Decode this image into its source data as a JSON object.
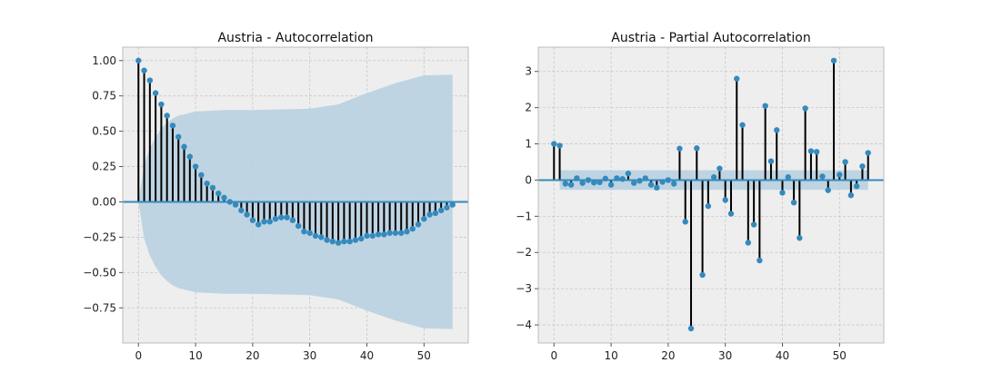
{
  "chart_data": [
    {
      "type": "stem",
      "title": "Austria - Autocorrelation",
      "xlabel": "",
      "ylabel": "",
      "xlim": [
        -2.75,
        57.75
      ],
      "ylim": [
        -0.9986,
        1.0948
      ],
      "xticks": [
        0,
        10,
        20,
        30,
        40,
        50
      ],
      "yticks": [
        -0.75,
        -0.5,
        -0.25,
        0.0,
        0.25,
        0.5,
        0.75,
        1.0
      ],
      "ytick_labels": [
        "−0.75",
        "−0.50",
        "−0.25",
        "0.00",
        "0.25",
        "0.50",
        "0.75",
        "1.00"
      ],
      "grid": true,
      "colors": {
        "marker": "#348abd",
        "stem": "#000000",
        "baseline": "#348abd",
        "band": "#bcd2e0",
        "axes_bg": "#eeeeee",
        "grid": "#c8c8c8"
      },
      "x": [
        0,
        1,
        2,
        3,
        4,
        5,
        6,
        7,
        8,
        9,
        10,
        11,
        12,
        13,
        14,
        15,
        16,
        17,
        18,
        19,
        20,
        21,
        22,
        23,
        24,
        25,
        26,
        27,
        28,
        29,
        30,
        31,
        32,
        33,
        34,
        35,
        36,
        37,
        38,
        39,
        40,
        41,
        42,
        43,
        44,
        45,
        46,
        47,
        48,
        49,
        50,
        51,
        52,
        53,
        54,
        55
      ],
      "values": [
        1.0,
        0.93,
        0.86,
        0.77,
        0.69,
        0.61,
        0.54,
        0.46,
        0.39,
        0.32,
        0.25,
        0.19,
        0.13,
        0.1,
        0.06,
        0.03,
        0.0,
        -0.02,
        -0.06,
        -0.09,
        -0.13,
        -0.16,
        -0.14,
        -0.14,
        -0.12,
        -0.11,
        -0.11,
        -0.13,
        -0.17,
        -0.21,
        -0.22,
        -0.24,
        -0.25,
        -0.27,
        -0.28,
        -0.29,
        -0.28,
        -0.28,
        -0.27,
        -0.26,
        -0.24,
        -0.24,
        -0.23,
        -0.23,
        -0.22,
        -0.22,
        -0.22,
        -0.21,
        -0.19,
        -0.16,
        -0.12,
        -0.09,
        -0.08,
        -0.06,
        -0.04,
        -0.02
      ],
      "confidence_band": {
        "x": [
          0,
          1,
          2,
          3,
          4,
          5,
          6,
          7,
          8,
          9,
          10,
          15,
          20,
          25,
          30,
          35,
          40,
          45,
          50,
          55
        ],
        "upper": [
          0,
          0.26,
          0.38,
          0.46,
          0.52,
          0.56,
          0.59,
          0.61,
          0.62,
          0.63,
          0.64,
          0.65,
          0.65,
          0.655,
          0.66,
          0.69,
          0.77,
          0.84,
          0.895,
          0.9
        ]
      }
    },
    {
      "type": "stem",
      "title": "Austria - Partial Autocorrelation",
      "xlabel": "",
      "ylabel": "",
      "xlim": [
        -2.75,
        57.75
      ],
      "ylim": [
        -4.5,
        3.67
      ],
      "xticks": [
        0,
        10,
        20,
        30,
        40,
        50
      ],
      "yticks": [
        -4,
        -3,
        -2,
        -1,
        0,
        1,
        2,
        3
      ],
      "ytick_labels": [
        "−4",
        "−3",
        "−2",
        "−1",
        "0",
        "1",
        "2",
        "3"
      ],
      "grid": true,
      "colors": {
        "marker": "#348abd",
        "stem": "#000000",
        "baseline": "#348abd",
        "band": "#bcd2e0",
        "axes_bg": "#eeeeee",
        "grid": "#c8c8c8"
      },
      "x": [
        0,
        1,
        2,
        3,
        4,
        5,
        6,
        7,
        8,
        9,
        10,
        11,
        12,
        13,
        14,
        15,
        16,
        17,
        18,
        19,
        20,
        21,
        22,
        23,
        24,
        25,
        26,
        27,
        28,
        29,
        30,
        31,
        32,
        33,
        34,
        35,
        36,
        37,
        38,
        39,
        40,
        41,
        42,
        43,
        44,
        45,
        46,
        47,
        48,
        49,
        50,
        51,
        52,
        53,
        54,
        55
      ],
      "values": [
        1.0,
        0.95,
        -0.1,
        -0.13,
        0.05,
        -0.08,
        0.0,
        -0.07,
        -0.06,
        0.04,
        -0.13,
        0.05,
        0.03,
        0.18,
        -0.08,
        -0.02,
        0.05,
        -0.13,
        -0.21,
        -0.05,
        0.0,
        -0.1,
        0.87,
        -1.15,
        -4.1,
        0.88,
        -2.62,
        -0.72,
        0.08,
        0.32,
        -0.55,
        -0.93,
        2.8,
        1.52,
        -1.73,
        -1.23,
        -2.22,
        2.05,
        0.52,
        1.38,
        -0.35,
        0.08,
        -0.62,
        -1.6,
        1.98,
        0.8,
        0.78,
        0.1,
        -0.28,
        3.3,
        0.15,
        0.5,
        -0.42,
        -0.17,
        0.38,
        0.75
      ],
      "confidence_band": {
        "x": [
          1,
          55
        ],
        "upper": [
          0.27,
          0.27
        ]
      }
    }
  ]
}
